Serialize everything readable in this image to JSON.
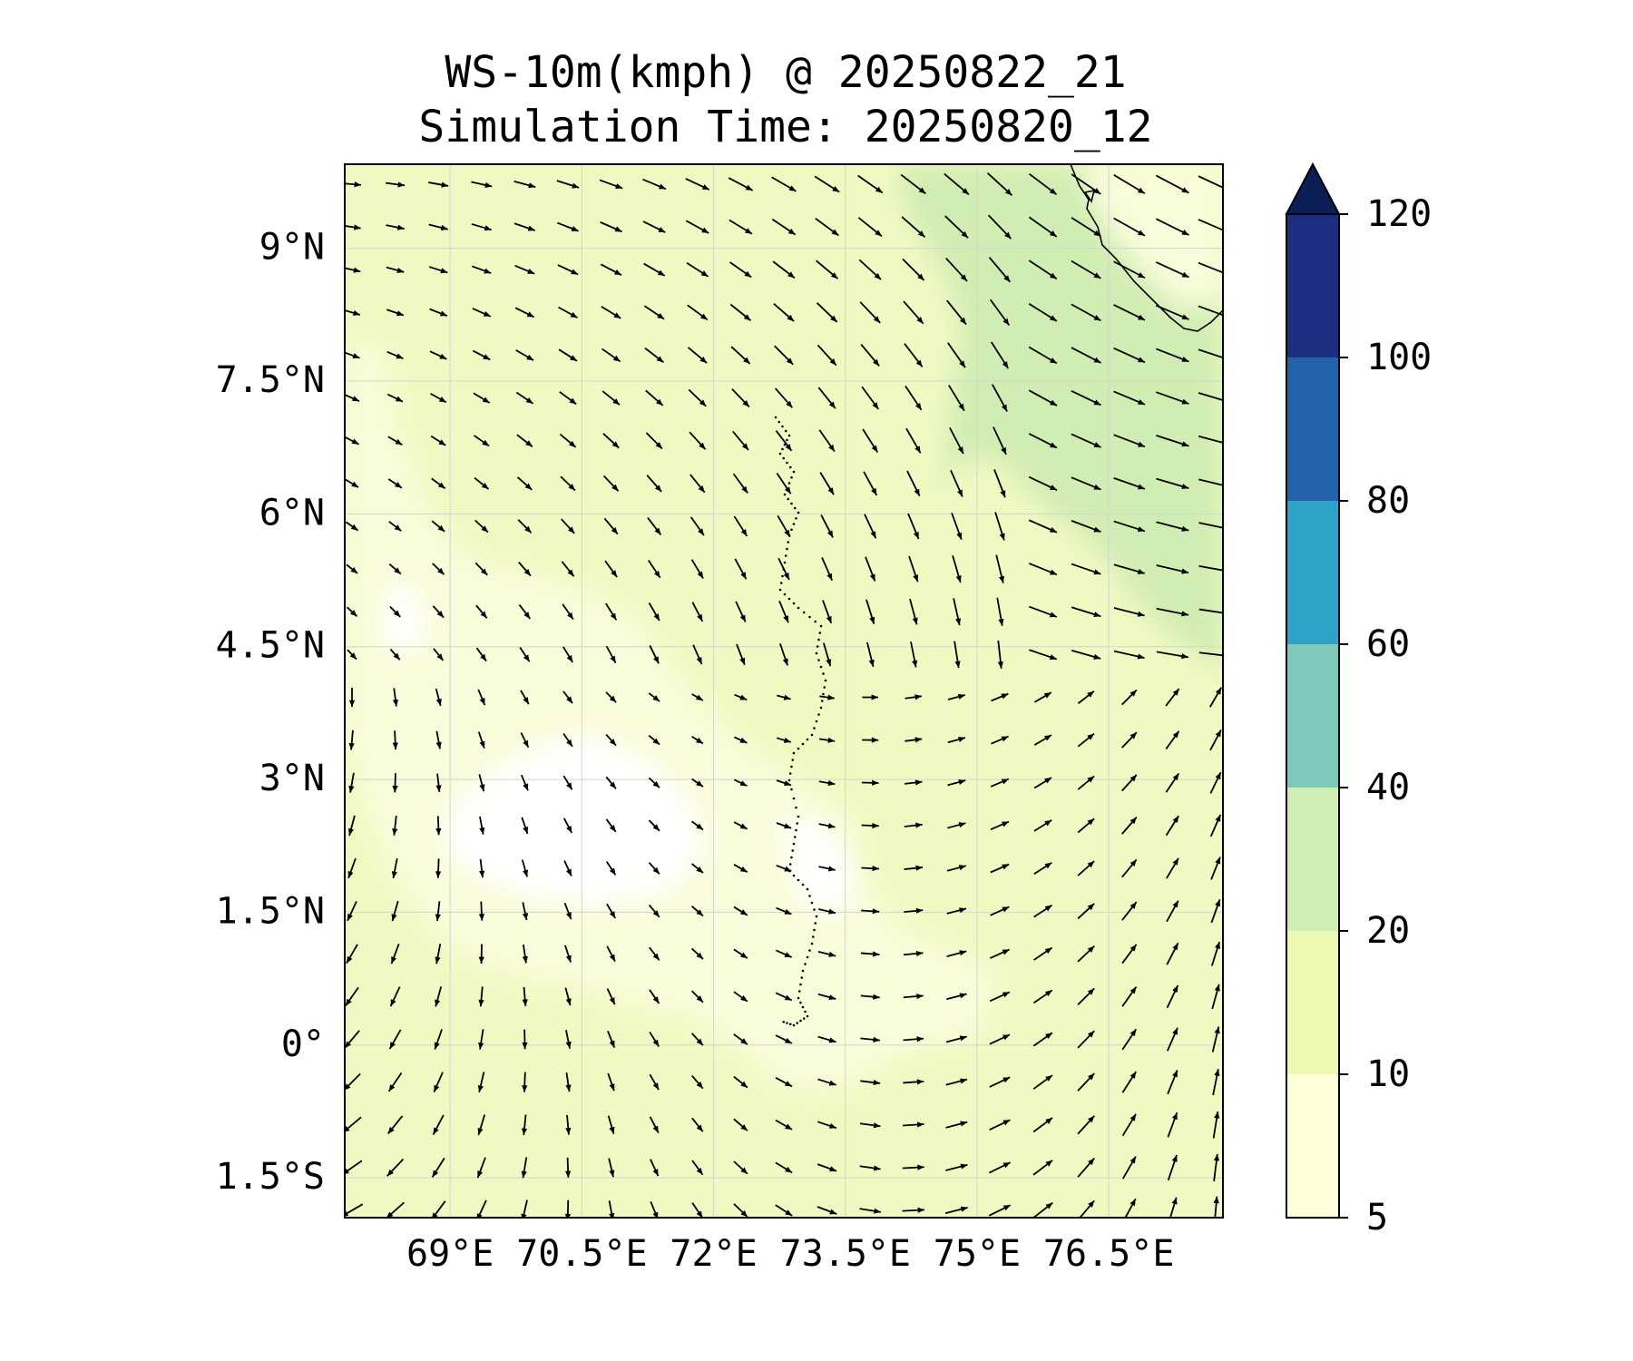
{
  "title": {
    "line1": "WS-10m(kmph) @ 20250822_21",
    "line2": "Simulation Time: 20250820_12"
  },
  "map": {
    "variable": "10 m wind speed (kmph) with wind vectors",
    "extent": {
      "lon": [
        67.8,
        77.8
      ],
      "lat": [
        -1.95,
        9.95
      ]
    },
    "lon_ticks": [
      {
        "value": 69,
        "label": "69°E"
      },
      {
        "value": 70.5,
        "label": "70.5°E"
      },
      {
        "value": 72,
        "label": "72°E"
      },
      {
        "value": 73.5,
        "label": "73.5°E"
      },
      {
        "value": 75,
        "label": "75°E"
      },
      {
        "value": 76.5,
        "label": "76.5°E"
      }
    ],
    "lat_ticks": [
      {
        "value": 9,
        "label": "9°N"
      },
      {
        "value": 7.5,
        "label": "7.5°N"
      },
      {
        "value": 6,
        "label": "6°N"
      },
      {
        "value": 4.5,
        "label": "4.5°N"
      },
      {
        "value": 3,
        "label": "3°N"
      },
      {
        "value": 1.5,
        "label": "1.5°N"
      },
      {
        "value": 0,
        "label": "0°"
      },
      {
        "value": -1.5,
        "label": "1.5°S"
      }
    ],
    "features": [
      "Lakshadweep / Maldives atolls (dotted)",
      "Sri Lanka coast (top-right)"
    ],
    "arrow_grid": {
      "columns": 21,
      "rows": 25
    }
  },
  "colorbar": {
    "levels": [
      5,
      10,
      20,
      40,
      60,
      80,
      100,
      120
    ],
    "colors": [
      "#ffffd9",
      "#edf8b1",
      "#d0edb3",
      "#7ec9bb",
      "#2ea1c6",
      "#2263ab",
      "#1d2e80"
    ],
    "extend_color": "#0b1e55",
    "extend": "max"
  }
}
